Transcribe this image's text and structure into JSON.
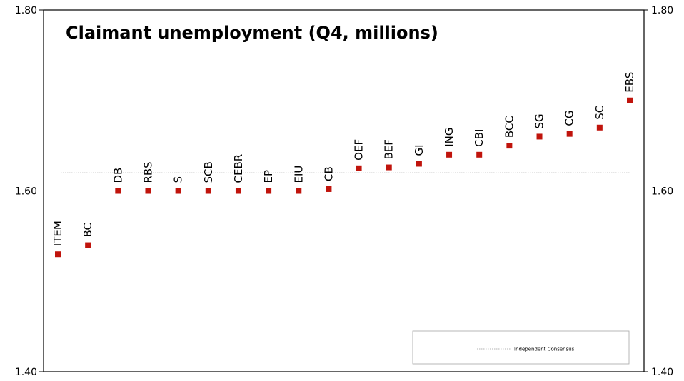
{
  "chart_data": {
    "type": "scatter",
    "title": "Claimant unemployment  (Q4, millions)",
    "xlabel": "",
    "ylabel": "",
    "ylim": [
      1.4,
      1.8
    ],
    "yticks": [
      "1.40",
      "1.60",
      "1.80"
    ],
    "grid": false,
    "legend_position": "bottom-right",
    "marker_color": "#c0140c",
    "categories": [
      "ITEM",
      "BC",
      "DB",
      "RBS",
      "S",
      "SCB",
      "CEBR",
      "EP",
      "EIU",
      "CB",
      "OEF",
      "BEF",
      "GI",
      "ING",
      "CBI",
      "BCC",
      "SG",
      "CG",
      "SC",
      "EBS"
    ],
    "values": [
      1.53,
      1.54,
      1.6,
      1.6,
      1.6,
      1.6,
      1.6,
      1.6,
      1.6,
      1.602,
      1.625,
      1.626,
      1.63,
      1.64,
      1.64,
      1.65,
      1.66,
      1.663,
      1.67,
      1.7
    ],
    "consensus": {
      "name": "Independent Consensus",
      "value": 1.62
    }
  }
}
